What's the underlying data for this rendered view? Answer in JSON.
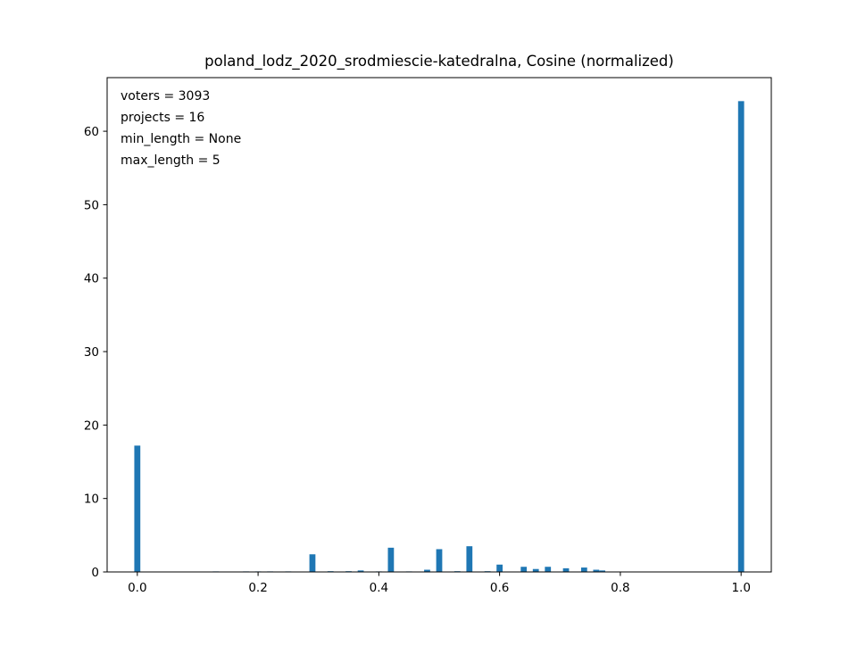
{
  "chart_data": {
    "type": "bar",
    "title": "poland_lodz_2020_srodmiescie-katedralna, Cosine (normalized)",
    "xlabel": "",
    "ylabel": "",
    "xlim": [
      -0.05,
      1.05
    ],
    "ylim": [
      0,
      67.3
    ],
    "xticks": [
      0.0,
      0.2,
      0.4,
      0.6,
      0.8,
      1.0
    ],
    "xtick_labels": [
      "0.0",
      "0.2",
      "0.4",
      "0.6",
      "0.8",
      "1.0"
    ],
    "yticks": [
      0,
      10,
      20,
      30,
      40,
      50,
      60
    ],
    "ytick_labels": [
      "0",
      "10",
      "20",
      "30",
      "40",
      "50",
      "60"
    ],
    "bin_width": 0.01,
    "bar_color": "#1f77b4",
    "grid": false,
    "annotations": [
      "voters = 3093",
      "projects = 16",
      "min_length = None",
      "max_length = 5"
    ],
    "x": [
      0.0,
      0.13,
      0.18,
      0.2,
      0.22,
      0.25,
      0.29,
      0.32,
      0.35,
      0.37,
      0.4,
      0.42,
      0.45,
      0.48,
      0.5,
      0.53,
      0.55,
      0.58,
      0.6,
      0.64,
      0.66,
      0.68,
      0.71,
      0.74,
      0.76,
      0.77,
      1.0
    ],
    "values": [
      17.2,
      0.05,
      0.05,
      0.05,
      0.05,
      0.05,
      2.4,
      0.1,
      0.1,
      0.2,
      0.05,
      3.3,
      0.05,
      0.3,
      3.1,
      0.1,
      3.5,
      0.1,
      1.0,
      0.7,
      0.4,
      0.7,
      0.5,
      0.6,
      0.3,
      0.2,
      64.1
    ]
  }
}
